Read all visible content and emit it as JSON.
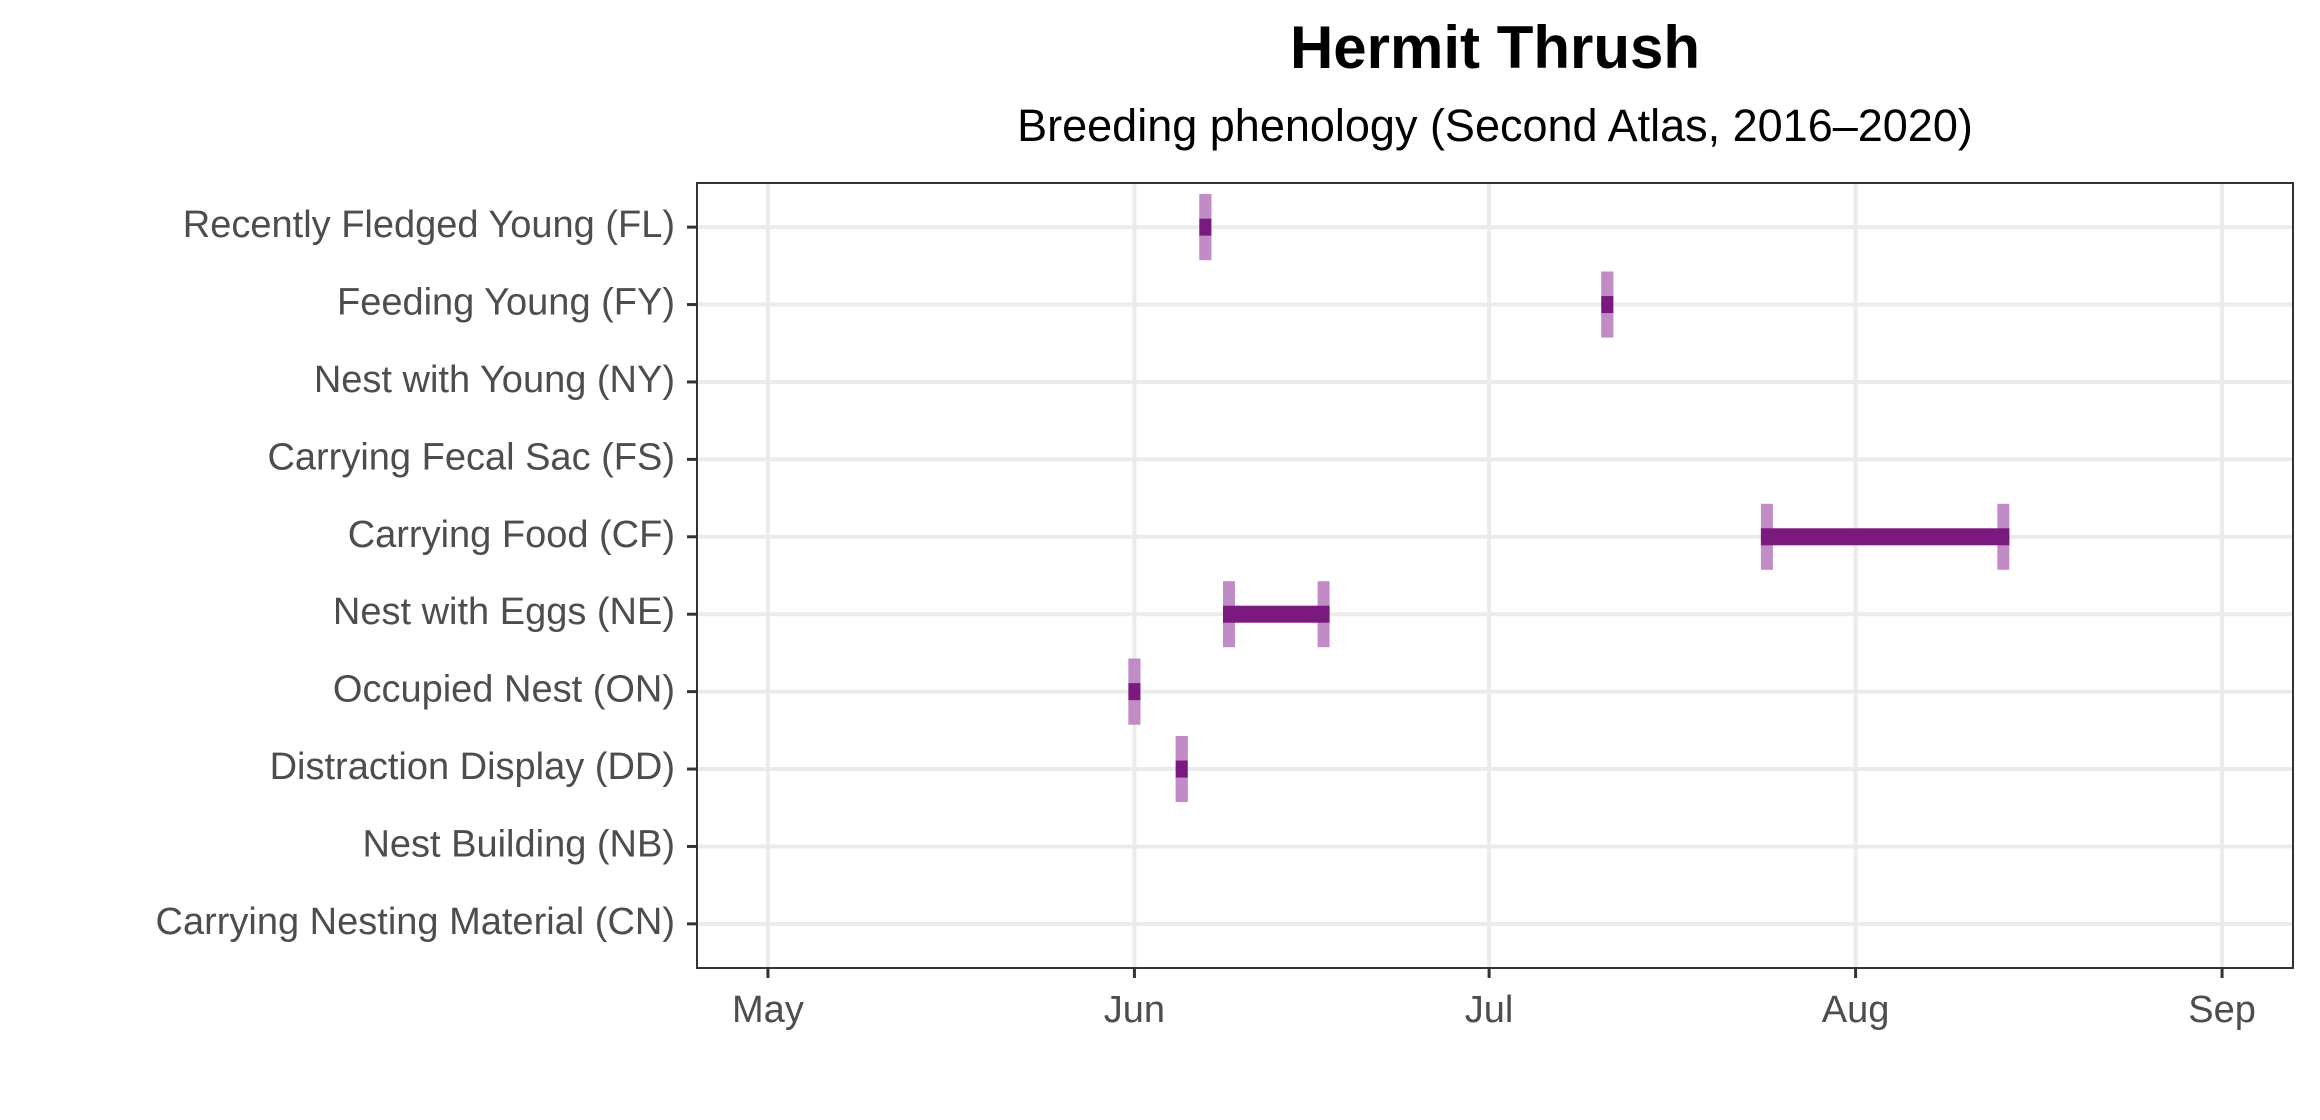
{
  "chart_data": {
    "type": "range",
    "title": "Hermit Thrush",
    "subtitle": "Breeding phenology (Second Atlas, 2016–2020)",
    "categories": [
      "Recently Fledged Young (FL)",
      "Feeding Young (FY)",
      "Nest with Young (NY)",
      "Carrying Fecal Sac (FS)",
      "Carrying Food (CF)",
      "Nest with Eggs (NE)",
      "Occupied Nest (ON)",
      "Distraction Display (DD)",
      "Nest Building (NB)",
      "Carrying Nesting Material (CN)"
    ],
    "start": [
      158,
      192,
      null,
      null,
      205.5,
      160,
      152,
      156,
      null,
      null
    ],
    "end": [
      158,
      192,
      null,
      null,
      225.5,
      168,
      152,
      156,
      null,
      null
    ],
    "xlim": [
      115,
      250
    ],
    "xticks": [
      {
        "value": 121,
        "label": "May"
      },
      {
        "value": 152,
        "label": "Jun"
      },
      {
        "value": 182,
        "label": "Jul"
      },
      {
        "value": 213,
        "label": "Aug"
      },
      {
        "value": 244,
        "label": "Sep"
      }
    ],
    "color": "#7b1a7e",
    "cap_color": "#c18cc5",
    "grid": true
  }
}
